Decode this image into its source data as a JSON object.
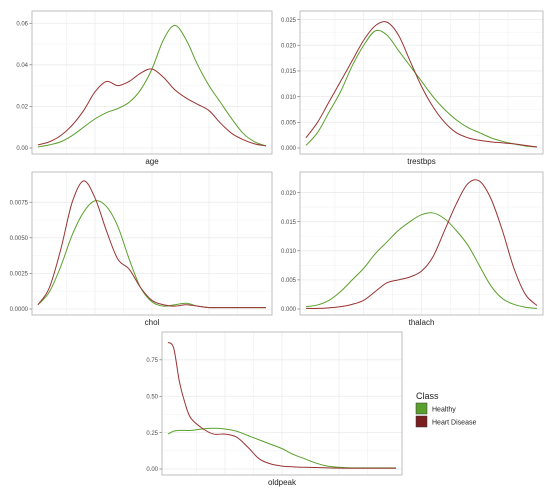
{
  "chart_data": [
    {
      "type": "line",
      "xlabel": "age",
      "ylim": [
        0,
        0.063
      ],
      "yticks": [
        0.0,
        0.02,
        0.04,
        0.06
      ],
      "ytick_labels": [
        "0.00",
        "0.02",
        "0.04",
        "0.06"
      ],
      "x": [
        0,
        0.05,
        0.1,
        0.15,
        0.2,
        0.25,
        0.3,
        0.35,
        0.4,
        0.45,
        0.5,
        0.55,
        0.6,
        0.65,
        0.7,
        0.75,
        0.8,
        0.85,
        0.9,
        0.95,
        1
      ],
      "series": [
        {
          "name": "Healthy",
          "values": [
            0.0005,
            0.0015,
            0.003,
            0.006,
            0.01,
            0.014,
            0.017,
            0.019,
            0.022,
            0.028,
            0.038,
            0.052,
            0.059,
            0.052,
            0.04,
            0.03,
            0.022,
            0.014,
            0.007,
            0.003,
            0.001
          ]
        },
        {
          "name": "Heart Disease",
          "values": [
            0.0015,
            0.003,
            0.006,
            0.011,
            0.018,
            0.027,
            0.032,
            0.03,
            0.032,
            0.036,
            0.038,
            0.034,
            0.028,
            0.024,
            0.021,
            0.018,
            0.012,
            0.007,
            0.004,
            0.002,
            0.001
          ]
        }
      ]
    },
    {
      "type": "line",
      "xlabel": "trestbps",
      "ylim": [
        0,
        0.0255
      ],
      "yticks": [
        0,
        0.005,
        0.01,
        0.015,
        0.02,
        0.025
      ],
      "ytick_labels": [
        "0.000",
        "0.005",
        "0.010",
        "0.015",
        "0.020",
        "0.025"
      ],
      "x": [
        0,
        0.05,
        0.1,
        0.15,
        0.2,
        0.25,
        0.3,
        0.35,
        0.4,
        0.45,
        0.5,
        0.55,
        0.6,
        0.65,
        0.7,
        0.75,
        0.8,
        0.85,
        0.9,
        0.95,
        1
      ],
      "series": [
        {
          "name": "Healthy",
          "values": [
            0.0005,
            0.003,
            0.007,
            0.011,
            0.016,
            0.02,
            0.0228,
            0.022,
            0.019,
            0.016,
            0.013,
            0.01,
            0.0075,
            0.0055,
            0.004,
            0.003,
            0.002,
            0.0013,
            0.0008,
            0.0004,
            0.0002
          ]
        },
        {
          "name": "Heart Disease",
          "values": [
            0.002,
            0.005,
            0.009,
            0.013,
            0.017,
            0.021,
            0.0238,
            0.0245,
            0.022,
            0.017,
            0.012,
            0.008,
            0.005,
            0.003,
            0.002,
            0.0015,
            0.0012,
            0.001,
            0.0008,
            0.0005,
            0.0002
          ]
        }
      ]
    },
    {
      "type": "line",
      "xlabel": "chol",
      "ylim": [
        0,
        0.0092
      ],
      "yticks": [
        0,
        0.0025,
        0.005,
        0.0075
      ],
      "ytick_labels": [
        "0.0000",
        "0.0025",
        "0.0050",
        "0.0075"
      ],
      "x": [
        0,
        0.05,
        0.1,
        0.15,
        0.2,
        0.25,
        0.3,
        0.35,
        0.4,
        0.45,
        0.5,
        0.55,
        0.6,
        0.65,
        0.7,
        0.75,
        0.8,
        0.85,
        0.9,
        0.95,
        1
      ],
      "series": [
        {
          "name": "Healthy",
          "values": [
            0.0003,
            0.0012,
            0.003,
            0.0052,
            0.0068,
            0.0076,
            0.0072,
            0.0058,
            0.0035,
            0.0015,
            0.0005,
            0.0002,
            0.0003,
            0.0004,
            0.0002,
            0.0001,
            0.0001,
            0.0001,
            0.0001,
            0.0001,
            0.0001
          ]
        },
        {
          "name": "Heart Disease",
          "values": [
            0.0003,
            0.0015,
            0.0042,
            0.0075,
            0.009,
            0.0078,
            0.0055,
            0.0035,
            0.0028,
            0.0015,
            0.0006,
            0.0003,
            0.0002,
            0.0003,
            0.0002,
            0.0001,
            0.0001,
            0.0001,
            0.0001,
            0.0001,
            0.0001
          ]
        }
      ]
    },
    {
      "type": "line",
      "xlabel": "thalach",
      "ylim": [
        0,
        0.0225
      ],
      "yticks": [
        0,
        0.005,
        0.01,
        0.015,
        0.02
      ],
      "ytick_labels": [
        "0.000",
        "0.005",
        "0.010",
        "0.015",
        "0.020"
      ],
      "x": [
        0,
        0.05,
        0.1,
        0.15,
        0.2,
        0.25,
        0.3,
        0.35,
        0.4,
        0.45,
        0.5,
        0.55,
        0.6,
        0.65,
        0.7,
        0.75,
        0.8,
        0.85,
        0.9,
        0.95,
        1
      ],
      "series": [
        {
          "name": "Healthy",
          "values": [
            0.0004,
            0.0007,
            0.0015,
            0.003,
            0.005,
            0.007,
            0.0095,
            0.0115,
            0.0135,
            0.015,
            0.0162,
            0.0165,
            0.0155,
            0.0135,
            0.011,
            0.0075,
            0.004,
            0.0018,
            0.0008,
            0.0003,
            0.0001
          ]
        },
        {
          "name": "Heart Disease",
          "values": [
            0.0001,
            0.0001,
            0.0002,
            0.0004,
            0.0008,
            0.0015,
            0.003,
            0.0045,
            0.005,
            0.0055,
            0.0065,
            0.009,
            0.0135,
            0.018,
            0.0215,
            0.022,
            0.019,
            0.0135,
            0.007,
            0.0025,
            0.0006
          ]
        }
      ]
    },
    {
      "type": "line",
      "xlabel": "oldpeak",
      "ylim": [
        0,
        0.9
      ],
      "yticks": [
        0,
        0.25,
        0.5,
        0.75
      ],
      "ytick_labels": [
        "0.00",
        "0.25",
        "0.50",
        "0.75"
      ],
      "x": [
        0,
        0.025,
        0.05,
        0.075,
        0.1,
        0.15,
        0.2,
        0.25,
        0.3,
        0.35,
        0.4,
        0.45,
        0.5,
        0.55,
        0.6,
        0.65,
        0.7,
        0.75,
        0.8,
        0.85,
        0.9,
        0.95,
        1
      ],
      "series": [
        {
          "name": "Healthy",
          "values": [
            0.24,
            0.26,
            0.265,
            0.265,
            0.265,
            0.275,
            0.28,
            0.275,
            0.26,
            0.23,
            0.2,
            0.17,
            0.14,
            0.1,
            0.07,
            0.04,
            0.02,
            0.012,
            0.008,
            0.008,
            0.008,
            0.008,
            0.008
          ]
        },
        {
          "name": "Heart Disease",
          "values": [
            0.87,
            0.83,
            0.6,
            0.45,
            0.35,
            0.28,
            0.24,
            0.24,
            0.22,
            0.15,
            0.07,
            0.035,
            0.02,
            0.015,
            0.012,
            0.01,
            0.008,
            0.006,
            0.005,
            0.005,
            0.005,
            0.005,
            0.005
          ]
        }
      ]
    }
  ],
  "legend": {
    "title": "Class",
    "items": [
      {
        "label": "Healthy",
        "color": "#5aa02c"
      },
      {
        "label": "Heart Disease",
        "color": "#7a1f1f"
      }
    ]
  },
  "colors": {
    "healthy_line": "#5aa02c",
    "disease_line": "#993333",
    "grid": "#ebebeb",
    "panel_border": "#b0b0b0",
    "axis_text": "#4d4d4d"
  }
}
